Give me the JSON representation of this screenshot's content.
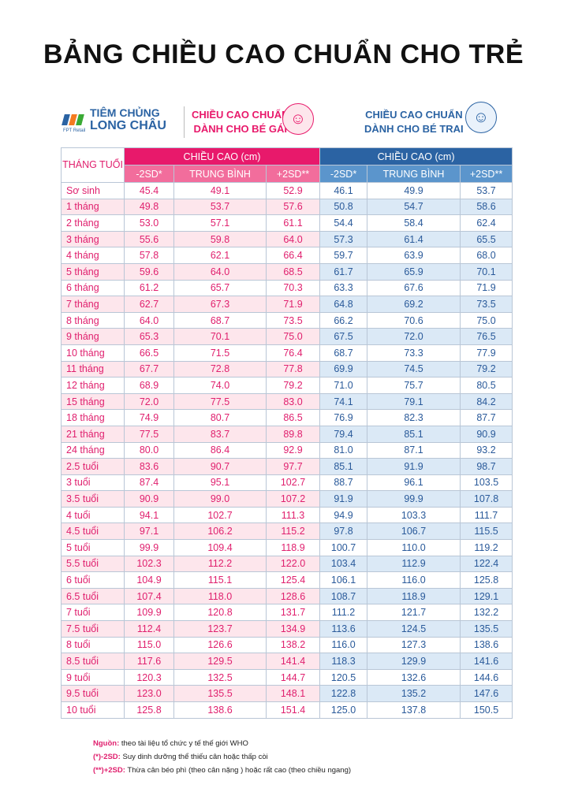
{
  "title": "BẢNG CHIỀU CAO CHUẨN CHO TRẺ",
  "brand": {
    "line1": "TIÊM CHỦNG",
    "line2": "LONG CHÂU",
    "sub": "FPT Retail"
  },
  "girl_header": {
    "line1": "CHIỀU CAO CHUẨN",
    "line2": "DÀNH CHO BÉ GÁI",
    "icon": "girl-face-icon",
    "color": "#e8196b"
  },
  "boy_header": {
    "line1": "CHIỀU CAO CHUẨN",
    "line2": "DÀNH CHO BÉ TRAI",
    "icon": "boy-face-icon",
    "color": "#2b63a3"
  },
  "table": {
    "age_header": "THÁNG TUỔI",
    "group_header": "CHIỀU CAO (cm)",
    "sub_headers": [
      "-2SD*",
      "TRUNG BÌNH",
      "+2SD**"
    ],
    "rows": [
      [
        "Sơ sinh",
        "45.4",
        "49.1",
        "52.9",
        "46.1",
        "49.9",
        "53.7"
      ],
      [
        "1 tháng",
        "49.8",
        "53.7",
        "57.6",
        "50.8",
        "54.7",
        "58.6"
      ],
      [
        "2 tháng",
        "53.0",
        "57.1",
        "61.1",
        "54.4",
        "58.4",
        "62.4"
      ],
      [
        "3 tháng",
        "55.6",
        "59.8",
        "64.0",
        "57.3",
        "61.4",
        "65.5"
      ],
      [
        "4 tháng",
        "57.8",
        "62.1",
        "66.4",
        "59.7",
        "63.9",
        "68.0"
      ],
      [
        "5 tháng",
        "59.6",
        "64.0",
        "68.5",
        "61.7",
        "65.9",
        "70.1"
      ],
      [
        "6 tháng",
        "61.2",
        "65.7",
        "70.3",
        "63.3",
        "67.6",
        "71.9"
      ],
      [
        "7 tháng",
        "62.7",
        "67.3",
        "71.9",
        "64.8",
        "69.2",
        "73.5"
      ],
      [
        "8 tháng",
        "64.0",
        "68.7",
        "73.5",
        "66.2",
        "70.6",
        "75.0"
      ],
      [
        "9 tháng",
        "65.3",
        "70.1",
        "75.0",
        "67.5",
        "72.0",
        "76.5"
      ],
      [
        "10 tháng",
        "66.5",
        "71.5",
        "76.4",
        "68.7",
        "73.3",
        "77.9"
      ],
      [
        "11 tháng",
        "67.7",
        "72.8",
        "77.8",
        "69.9",
        "74.5",
        "79.2"
      ],
      [
        "12 tháng",
        "68.9",
        "74.0",
        "79.2",
        "71.0",
        "75.7",
        "80.5"
      ],
      [
        "15 tháng",
        "72.0",
        "77.5",
        "83.0",
        "74.1",
        "79.1",
        "84.2"
      ],
      [
        "18 tháng",
        "74.9",
        "80.7",
        "86.5",
        "76.9",
        "82.3",
        "87.7"
      ],
      [
        "21 tháng",
        "77.5",
        "83.7",
        "89.8",
        "79.4",
        "85.1",
        "90.9"
      ],
      [
        "24 tháng",
        "80.0",
        "86.4",
        "92.9",
        "81.0",
        "87.1",
        "93.2"
      ],
      [
        "2.5 tuổi",
        "83.6",
        "90.7",
        "97.7",
        "85.1",
        "91.9",
        "98.7"
      ],
      [
        "3 tuổi",
        "87.4",
        "95.1",
        "102.7",
        "88.7",
        "96.1",
        "103.5"
      ],
      [
        "3.5 tuổi",
        "90.9",
        "99.0",
        "107.2",
        "91.9",
        "99.9",
        "107.8"
      ],
      [
        "4 tuổi",
        "94.1",
        "102.7",
        "111.3",
        "94.9",
        "103.3",
        "111.7"
      ],
      [
        "4.5 tuổi",
        "97.1",
        "106.2",
        "115.2",
        "97.8",
        "106.7",
        "115.5"
      ],
      [
        "5 tuổi",
        "99.9",
        "109.4",
        "118.9",
        "100.7",
        "110.0",
        "119.2"
      ],
      [
        "5.5 tuổi",
        "102.3",
        "112.2",
        "122.0",
        "103.4",
        "112.9",
        "122.4"
      ],
      [
        "6 tuổi",
        "104.9",
        "115.1",
        "125.4",
        "106.1",
        "116.0",
        "125.8"
      ],
      [
        "6.5 tuổi",
        "107.4",
        "118.0",
        "128.6",
        "108.7",
        "118.9",
        "129.1"
      ],
      [
        "7 tuổi",
        "109.9",
        "120.8",
        "131.7",
        "111.2",
        "121.7",
        "132.2"
      ],
      [
        "7.5 tuổi",
        "112.4",
        "123.7",
        "134.9",
        "113.6",
        "124.5",
        "135.5"
      ],
      [
        "8 tuổi",
        "115.0",
        "126.6",
        "138.2",
        "116.0",
        "127.3",
        "138.6"
      ],
      [
        "8.5 tuổi",
        "117.6",
        "129.5",
        "141.4",
        "118.3",
        "129.9",
        "141.6"
      ],
      [
        "9 tuổi",
        "120.3",
        "132.5",
        "144.7",
        "120.5",
        "132.6",
        "144.6"
      ],
      [
        "9.5 tuổi",
        "123.0",
        "135.5",
        "148.1",
        "122.8",
        "135.2",
        "147.6"
      ],
      [
        "10 tuổi",
        "125.8",
        "138.6",
        "151.4",
        "125.0",
        "137.8",
        "150.5"
      ]
    ]
  },
  "notes": [
    {
      "label": "Nguồn:",
      "text": " theo tài liệu tổ chức y tế thế giới WHO"
    },
    {
      "label": "(*)-2SD:",
      "text": " Suy dinh dưỡng thể thiếu cân hoặc thấp còi"
    },
    {
      "label": "(**)+2SD:",
      "text": " Thừa cân béo phì (theo cân nặng ) hoặc rất cao (theo chiều ngang)"
    }
  ]
}
